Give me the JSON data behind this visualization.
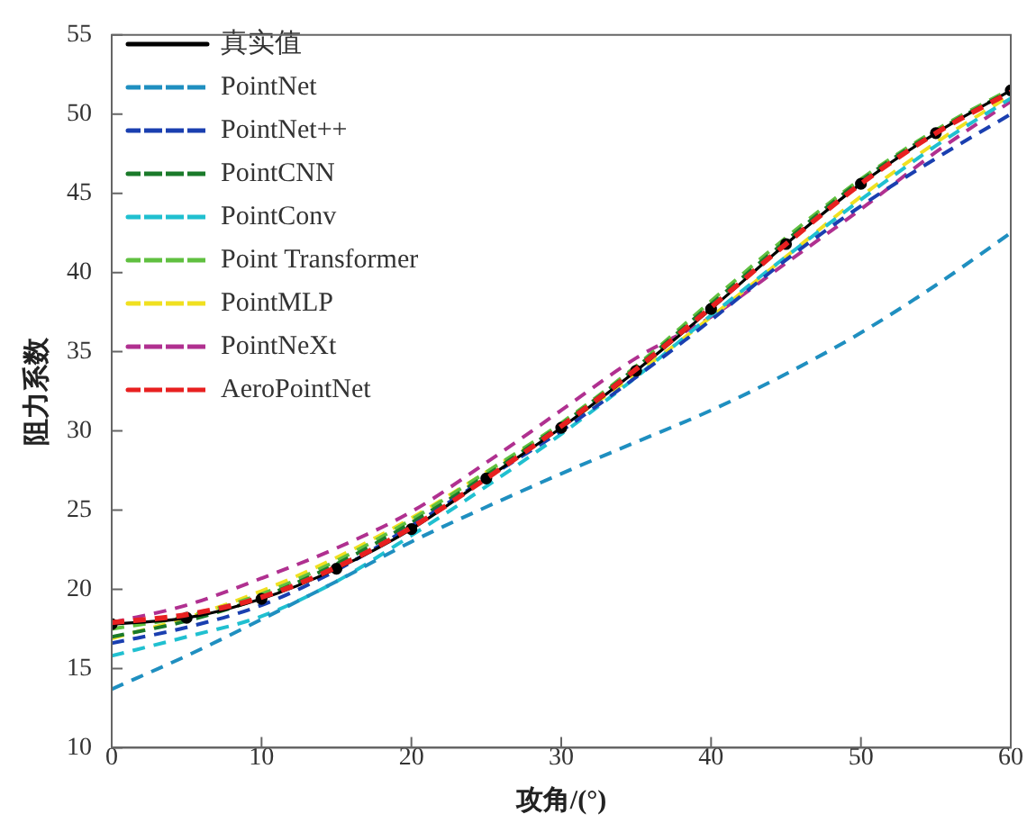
{
  "chart_data": {
    "type": "line",
    "xlabel": "攻角/(°)",
    "ylabel": "阻力系数",
    "x": [
      0,
      5,
      10,
      15,
      20,
      25,
      30,
      35,
      40,
      45,
      50,
      55,
      60
    ],
    "xlim": [
      0,
      60
    ],
    "xticks": [
      0,
      10,
      20,
      30,
      40,
      50,
      60
    ],
    "ylim": [
      10,
      55
    ],
    "yticks": [
      10,
      15,
      20,
      25,
      30,
      35,
      40,
      45,
      50,
      55
    ],
    "grid": false,
    "legend": "top left",
    "series": [
      {
        "name": "真实值",
        "color": "#000000",
        "marker": "circle",
        "line_style": "solid",
        "values": [
          17.8,
          18.2,
          19.4,
          21.3,
          23.8,
          27.0,
          30.2,
          33.8,
          37.7,
          41.8,
          45.6,
          48.8,
          51.5
        ]
      },
      {
        "name": "PointNet",
        "color": "#1f8fc0",
        "marker": "none",
        "line_style": "dashed",
        "values": [
          13.7,
          15.8,
          18.1,
          20.5,
          23.0,
          25.2,
          27.3,
          29.3,
          31.3,
          33.6,
          36.2,
          39.2,
          42.5
        ]
      },
      {
        "name": "PointNet++",
        "color": "#1a3fb0",
        "marker": "none",
        "line_style": "dashed",
        "values": [
          16.6,
          17.6,
          19.0,
          21.2,
          24.0,
          27.0,
          30.0,
          33.4,
          37.0,
          40.8,
          44.2,
          47.2,
          50.0
        ]
      },
      {
        "name": "PointCNN",
        "color": "#1a7a2a",
        "marker": "none",
        "line_style": "dashed",
        "values": [
          17.0,
          18.0,
          19.5,
          21.6,
          24.2,
          27.2,
          30.4,
          34.0,
          38.0,
          42.0,
          45.8,
          48.9,
          51.5
        ]
      },
      {
        "name": "PointConv",
        "color": "#20c0d0",
        "marker": "none",
        "line_style": "dashed",
        "values": [
          15.8,
          17.0,
          18.3,
          20.5,
          23.4,
          26.5,
          29.8,
          33.4,
          37.3,
          41.0,
          44.6,
          48.0,
          51.0
        ]
      },
      {
        "name": "Point Transformer",
        "color": "#60c040",
        "marker": "none",
        "line_style": "dashed",
        "values": [
          17.5,
          18.3,
          19.7,
          21.8,
          24.4,
          27.4,
          30.5,
          34.1,
          38.2,
          42.2,
          45.9,
          49.0,
          51.6
        ]
      },
      {
        "name": "PointMLP",
        "color": "#f0e020",
        "marker": "none",
        "line_style": "dashed",
        "values": [
          16.9,
          18.2,
          19.9,
          22.0,
          24.5,
          27.4,
          30.3,
          33.6,
          37.2,
          41.0,
          44.8,
          48.2,
          51.2
        ]
      },
      {
        "name": "PointNeXt",
        "color": "#b03090",
        "marker": "none",
        "line_style": "dashed",
        "values": [
          17.9,
          19.0,
          20.7,
          22.6,
          24.9,
          28.0,
          31.3,
          34.6,
          37.2,
          40.6,
          44.0,
          47.6,
          50.8
        ]
      },
      {
        "name": "AeroPointNet",
        "color": "#e82020",
        "marker": "none",
        "line_style": "dashed",
        "values": [
          17.9,
          18.4,
          19.5,
          21.4,
          23.9,
          27.0,
          30.3,
          33.9,
          37.8,
          41.8,
          45.6,
          48.8,
          51.4
        ]
      }
    ]
  }
}
